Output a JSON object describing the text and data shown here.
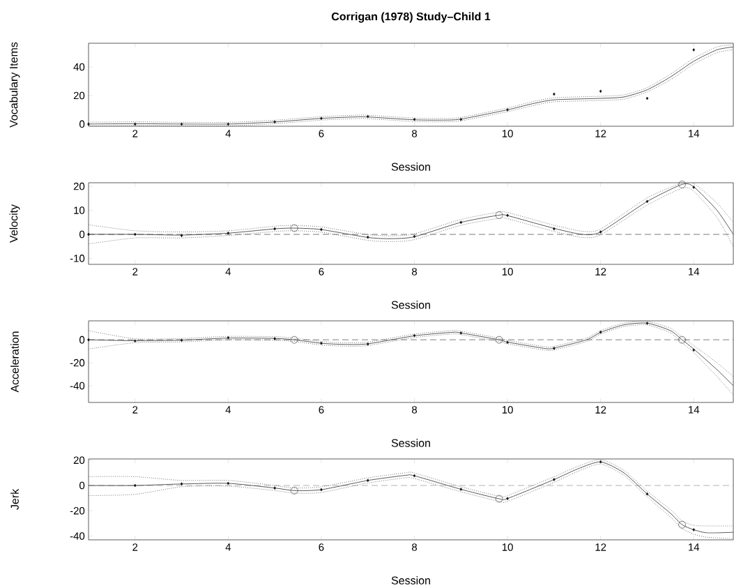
{
  "chart_data": [
    {
      "type": "line",
      "title": "Corrigan (1978) Study–Child 1",
      "xlabel": "Session",
      "ylabel": "Vocabulary Items",
      "xlim": [
        1,
        14.85
      ],
      "xticks": [
        2,
        4,
        6,
        8,
        10,
        12,
        14
      ],
      "ylim": [
        -1.5,
        56.6
      ],
      "yticks": [
        0,
        20,
        40
      ],
      "grid": false,
      "series": [
        {
          "color": "#444444",
          "line_style": "solid",
          "marker": "none",
          "x": [
            1,
            2,
            3,
            4,
            5,
            6,
            6.7,
            7,
            8,
            8.6,
            9,
            10,
            10.5,
            11,
            12,
            12.5,
            13,
            13.5,
            14,
            14.5,
            14.85
          ],
          "values": [
            0,
            0.3,
            0,
            0,
            1.5,
            4,
            5,
            5,
            3,
            2.8,
            3.5,
            10,
            14,
            17,
            18,
            19,
            24,
            33,
            44,
            52,
            54
          ]
        },
        {
          "color": "#555555",
          "line_style": "dotted",
          "marker": "none",
          "x": [
            1,
            2,
            3,
            4,
            5,
            6,
            6.7,
            7,
            8,
            8.6,
            9,
            10,
            10.5,
            11,
            12,
            12.5,
            13,
            13.5,
            14,
            14.5,
            14.85
          ],
          "values": [
            -1.3,
            -1,
            -1.2,
            -1.2,
            0.3,
            2.8,
            3.8,
            3.8,
            1.8,
            1.6,
            2.3,
            8.7,
            12.6,
            15.6,
            16.5,
            17.5,
            22.5,
            31,
            42,
            50,
            52
          ]
        },
        {
          "color": "#555555",
          "line_style": "dotted",
          "marker": "none",
          "x": [
            1,
            2,
            3,
            4,
            5,
            6,
            6.7,
            7,
            8,
            8.6,
            9,
            10,
            10.5,
            11,
            12,
            12.5,
            13,
            13.5,
            14,
            14.5,
            14.85
          ],
          "values": [
            1.3,
            1.6,
            1.2,
            1.2,
            2.7,
            5.2,
            6.2,
            6.2,
            4.2,
            4,
            4.7,
            11.3,
            15.4,
            18.4,
            19.5,
            20.5,
            25.5,
            35,
            46,
            54,
            55.5
          ]
        },
        {
          "type": "scatter",
          "color": "#111111",
          "marker": "diamond",
          "x": [
            1,
            2,
            3,
            4,
            5,
            6,
            7,
            8,
            9,
            10,
            11,
            12,
            13,
            14
          ],
          "values": [
            0,
            0,
            0,
            0,
            1.5,
            4,
            5.3,
            3.3,
            3.3,
            10,
            21,
            23,
            18,
            52
          ]
        }
      ]
    },
    {
      "type": "line",
      "xlabel": "Session",
      "ylabel": "Velocity",
      "xlim": [
        1,
        14.85
      ],
      "xticks": [
        2,
        4,
        6,
        8,
        10,
        12,
        14
      ],
      "ylim": [
        -12.5,
        21.5
      ],
      "yticks": [
        -10,
        0,
        10,
        20
      ],
      "grid": false,
      "ref_lines": [
        {
          "axis": "y",
          "value": 0,
          "color": "#555555",
          "line_style": "dashed"
        }
      ],
      "series": [
        {
          "color": "#444444",
          "line_style": "solid",
          "marker": "none",
          "x": [
            1,
            2,
            3,
            4,
            5,
            5.42,
            6,
            7,
            7.5,
            8,
            9,
            9.82,
            10,
            11,
            11.6,
            12,
            13,
            13.75,
            14,
            14.5,
            14.85
          ],
          "values": [
            0,
            0,
            -0.3,
            0.5,
            2.3,
            2.6,
            2,
            -1.3,
            -1.8,
            -1,
            5,
            8,
            7.8,
            2.5,
            0,
            1,
            13.7,
            20.8,
            19.8,
            10,
            0
          ]
        },
        {
          "color": "#555555",
          "line_style": "dotted",
          "marker": "none",
          "x": [
            1,
            2,
            3,
            4,
            5,
            5.42,
            6,
            7,
            7.5,
            8,
            9,
            9.82,
            10,
            11,
            11.6,
            12,
            13,
            13.75,
            14,
            14.5,
            14.85
          ],
          "values": [
            -4,
            -1.5,
            -1.5,
            -0.5,
            1.2,
            1.5,
            0.9,
            -2.5,
            -3,
            -2.2,
            3.8,
            6.7,
            6.5,
            1.2,
            -1.3,
            -0.2,
            12.2,
            19.2,
            18,
            7,
            -5
          ]
        },
        {
          "color": "#555555",
          "line_style": "dotted",
          "marker": "none",
          "x": [
            1,
            2,
            3,
            4,
            5,
            5.42,
            6,
            7,
            7.5,
            8,
            9,
            9.82,
            10,
            11,
            11.6,
            12,
            13,
            13.75,
            14,
            14.5,
            14.85
          ],
          "values": [
            4,
            1.5,
            1,
            1.5,
            3.4,
            3.7,
            3.1,
            -0.1,
            -0.6,
            0.2,
            6.2,
            9.3,
            9.1,
            3.8,
            1.3,
            2.2,
            15.2,
            21.4,
            21.2,
            13,
            5
          ]
        },
        {
          "type": "scatter",
          "color": "#111111",
          "marker": "diamond",
          "x": [
            1,
            2,
            3,
            4,
            5,
            6,
            7,
            8,
            9,
            10,
            11,
            12,
            13,
            14
          ],
          "values": [
            0,
            0,
            -0.5,
            0.5,
            2.3,
            2,
            -1.2,
            -0.9,
            5,
            7.9,
            2.3,
            1,
            13.7,
            19.6
          ]
        },
        {
          "type": "scatter",
          "color": "#333333",
          "marker": "circle",
          "x": [
            5.42,
            9.82,
            13.75
          ],
          "values": [
            2.6,
            8,
            20.8
          ]
        }
      ]
    },
    {
      "type": "line",
      "xlabel": "Session",
      "ylabel": "Acceleration",
      "xlim": [
        1,
        14.85
      ],
      "xticks": [
        2,
        4,
        6,
        8,
        10,
        12,
        14
      ],
      "ylim": [
        -54.5,
        16.5
      ],
      "yticks": [
        -40,
        -20,
        0
      ],
      "grid": false,
      "ref_lines": [
        {
          "axis": "y",
          "value": 0,
          "color": "#555555",
          "line_style": "dashed"
        }
      ],
      "series": [
        {
          "color": "#444444",
          "line_style": "solid",
          "marker": "none",
          "x": [
            1,
            2,
            3,
            4,
            5,
            5.42,
            6,
            6.5,
            7,
            8,
            8.8,
            9,
            9.82,
            10,
            10.8,
            11,
            11.7,
            12,
            12.5,
            13,
            13.5,
            13.75,
            14,
            14.5,
            14.85
          ],
          "values": [
            0,
            -0.8,
            -0.3,
            1.5,
            1.2,
            0,
            -3,
            -4,
            -3.5,
            3.5,
            6.5,
            6,
            0,
            -2,
            -7.5,
            -7.2,
            0,
            6.5,
            13,
            14.5,
            8,
            0,
            -8,
            -26,
            -40
          ]
        },
        {
          "color": "#555555",
          "line_style": "dotted",
          "marker": "none",
          "x": [
            1,
            2,
            3,
            4,
            5,
            5.42,
            6,
            6.5,
            7,
            8,
            8.8,
            9,
            9.82,
            10,
            10.8,
            11,
            11.7,
            12,
            12.5,
            13,
            13.5,
            13.75,
            14,
            14.5,
            14.85
          ],
          "values": [
            -8,
            -2.5,
            -1.8,
            0,
            -0.3,
            -1.5,
            -4.5,
            -5.5,
            -5,
            2,
            5,
            4.5,
            -1.5,
            -3.5,
            -9,
            -8.7,
            -1.5,
            5,
            11.5,
            13,
            6,
            -2.5,
            -11,
            -32,
            -48
          ]
        },
        {
          "color": "#555555",
          "line_style": "dotted",
          "marker": "none",
          "x": [
            1,
            2,
            3,
            4,
            5,
            5.42,
            6,
            6.5,
            7,
            8,
            8.8,
            9,
            9.82,
            10,
            10.8,
            11,
            11.7,
            12,
            12.5,
            13,
            13.5,
            13.75,
            14,
            14.5,
            14.85
          ],
          "values": [
            8,
            0.9,
            1.2,
            3,
            2.7,
            1.5,
            -1.5,
            -2.5,
            -2,
            5,
            8,
            7.5,
            1.5,
            -0.5,
            -6,
            -5.7,
            1.5,
            8,
            14.5,
            16,
            10,
            2.5,
            -5,
            -20,
            -32
          ]
        },
        {
          "type": "scatter",
          "color": "#111111",
          "marker": "diamond",
          "x": [
            1,
            2,
            3,
            4,
            5,
            6,
            7,
            8,
            9,
            10,
            11,
            12,
            13,
            14
          ],
          "values": [
            0,
            -1,
            -0.4,
            1.8,
            1,
            -3,
            -3.7,
            3.7,
            5.9,
            -2.2,
            -7.4,
            6.7,
            14.4,
            -8.9
          ]
        },
        {
          "type": "scatter",
          "color": "#333333",
          "marker": "circle",
          "x": [
            5.42,
            9.82,
            13.75
          ],
          "values": [
            0,
            0,
            0
          ]
        }
      ]
    },
    {
      "type": "line",
      "xlabel": "Session",
      "ylabel": "Jerk",
      "xlim": [
        1,
        14.85
      ],
      "xticks": [
        2,
        4,
        6,
        8,
        10,
        12,
        14
      ],
      "ylim": [
        -43,
        21
      ],
      "yticks": [
        -40,
        -20,
        0,
        20
      ],
      "grid": false,
      "ref_lines": [
        {
          "axis": "y",
          "value": 0,
          "color": "#555555",
          "line_style": "dashed"
        }
      ],
      "series": [
        {
          "color": "#444444",
          "line_style": "solid",
          "marker": "none",
          "x": [
            1,
            2,
            3,
            4,
            5,
            5.42,
            6,
            7,
            7.8,
            8,
            9,
            9.82,
            10,
            11,
            11.5,
            12,
            12.5,
            13,
            13.5,
            13.75,
            14,
            14.3,
            14.85
          ],
          "values": [
            0,
            0,
            1.2,
            1.7,
            -2,
            -4,
            -3.3,
            4,
            8,
            7.7,
            -3,
            -10.5,
            -10.3,
            4.7,
            13,
            18.7,
            10,
            -6.7,
            -22,
            -31,
            -35,
            -37.5,
            -37
          ]
        },
        {
          "color": "#555555",
          "line_style": "dotted",
          "marker": "none",
          "x": [
            1,
            2,
            3,
            4,
            5,
            5.42,
            6,
            7,
            7.8,
            8,
            9,
            9.82,
            10,
            11,
            11.5,
            12,
            12.5,
            13,
            13.5,
            13.75,
            14,
            14.3,
            14.85
          ],
          "values": [
            -8,
            -7,
            -1,
            -0.5,
            -4,
            -6,
            -5.5,
            2,
            6,
            5.5,
            -5,
            -12.5,
            -12.5,
            2.5,
            11,
            17,
            8,
            -9,
            -25,
            -34,
            -38.5,
            -41,
            -42
          ]
        },
        {
          "color": "#555555",
          "line_style": "dotted",
          "marker": "none",
          "x": [
            1,
            2,
            3,
            4,
            5,
            5.42,
            6,
            7,
            7.8,
            8,
            9,
            9.82,
            10,
            11,
            11.5,
            12,
            12.5,
            13,
            13.5,
            13.75,
            14,
            14.3,
            14.85
          ],
          "values": [
            7,
            7,
            4,
            4,
            0,
            -2,
            -1,
            6,
            10,
            9.9,
            -1,
            -8.5,
            -8,
            7,
            15,
            20.5,
            12,
            -4.5,
            -19,
            -28,
            -31.5,
            -32,
            -32
          ]
        },
        {
          "type": "scatter",
          "color": "#111111",
          "marker": "diamond",
          "x": [
            2,
            3,
            4,
            5,
            6,
            7,
            8,
            9,
            10,
            11,
            12,
            13,
            14
          ],
          "values": [
            0,
            1.3,
            1.7,
            -2,
            -3.3,
            4,
            7.7,
            -3,
            -10.3,
            4.7,
            18.7,
            -6.7,
            -35
          ]
        },
        {
          "type": "scatter",
          "color": "#333333",
          "marker": "circle",
          "x": [
            5.42,
            9.82,
            13.75
          ],
          "values": [
            -4,
            -10.5,
            -31
          ]
        }
      ]
    }
  ]
}
